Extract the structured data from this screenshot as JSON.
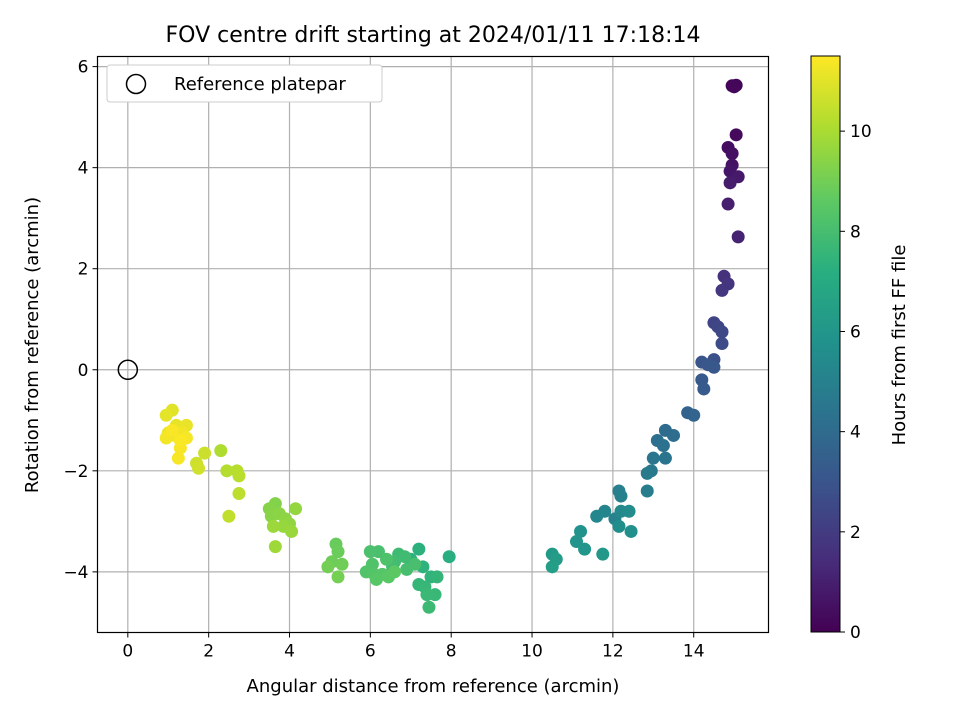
{
  "chart_data": {
    "type": "scatter",
    "title": "FOV centre drift starting at 2024/01/11 17:18:14",
    "xlabel": "Angular distance from reference (arcmin)",
    "ylabel": "Rotation from reference (arcmin)",
    "xlim": [
      -0.75,
      15.85
    ],
    "ylim": [
      -5.2,
      6.2
    ],
    "xticks": [
      0,
      2,
      4,
      6,
      8,
      10,
      12,
      14
    ],
    "yticks": [
      -4,
      -2,
      0,
      2,
      4,
      6
    ],
    "grid": true,
    "legend": {
      "placement": "top-left",
      "entries": [
        "Reference platepar"
      ]
    },
    "colorbar": {
      "label": "Hours from first FF file",
      "range": [
        0,
        11.5
      ],
      "ticks": [
        0,
        2,
        4,
        6,
        8,
        10
      ],
      "colormap": "viridis"
    },
    "reference_point": {
      "x": 0,
      "y": 0
    },
    "series": [
      {
        "points": [
          [
            14.95,
            5.62,
            0.1
          ],
          [
            15.05,
            5.63,
            0.15
          ],
          [
            15.0,
            5.6,
            0.2
          ],
          [
            15.05,
            4.65,
            0.3
          ],
          [
            14.85,
            4.4,
            0.4
          ],
          [
            14.95,
            4.28,
            0.5
          ],
          [
            14.95,
            4.05,
            0.6
          ],
          [
            14.9,
            3.93,
            0.7
          ],
          [
            15.1,
            3.82,
            0.8
          ],
          [
            14.9,
            3.7,
            0.9
          ],
          [
            14.85,
            3.28,
            1.0
          ],
          [
            15.1,
            2.63,
            1.1
          ],
          [
            14.75,
            1.85,
            1.6
          ],
          [
            14.85,
            1.7,
            1.7
          ],
          [
            14.7,
            1.57,
            1.8
          ],
          [
            14.5,
            0.93,
            2.3
          ],
          [
            14.6,
            0.85,
            2.4
          ],
          [
            14.7,
            0.75,
            2.5
          ],
          [
            14.7,
            0.52,
            2.6
          ],
          [
            14.5,
            0.2,
            2.8
          ],
          [
            14.2,
            0.15,
            3.0
          ],
          [
            14.35,
            0.1,
            3.1
          ],
          [
            14.5,
            0.05,
            3.15
          ],
          [
            14.2,
            -0.2,
            3.2
          ],
          [
            14.25,
            -0.38,
            3.3
          ],
          [
            13.85,
            -0.85,
            3.6
          ],
          [
            14.0,
            -0.9,
            3.7
          ],
          [
            13.3,
            -1.2,
            4.0
          ],
          [
            13.5,
            -1.3,
            4.1
          ],
          [
            13.1,
            -1.4,
            4.2
          ],
          [
            13.25,
            -1.5,
            4.3
          ],
          [
            13.3,
            -1.75,
            4.4
          ],
          [
            13.0,
            -1.75,
            4.5
          ],
          [
            12.95,
            -2.0,
            4.6
          ],
          [
            12.85,
            -2.05,
            4.7
          ],
          [
            12.85,
            -2.4,
            4.8
          ],
          [
            12.15,
            -2.4,
            4.9
          ],
          [
            12.2,
            -2.5,
            5.0
          ],
          [
            12.05,
            -2.95,
            5.1
          ],
          [
            11.8,
            -2.8,
            5.2
          ],
          [
            11.6,
            -2.9,
            5.3
          ],
          [
            12.2,
            -2.8,
            5.4
          ],
          [
            12.4,
            -2.8,
            5.5
          ],
          [
            12.15,
            -3.1,
            5.6
          ],
          [
            12.45,
            -3.2,
            5.7
          ],
          [
            11.2,
            -3.2,
            5.8
          ],
          [
            11.1,
            -3.4,
            5.9
          ],
          [
            11.3,
            -3.55,
            6.0
          ],
          [
            11.75,
            -3.65,
            6.1
          ],
          [
            10.5,
            -3.65,
            6.2
          ],
          [
            10.6,
            -3.75,
            6.3
          ],
          [
            10.5,
            -3.9,
            6.4
          ],
          [
            7.95,
            -3.7,
            7.2
          ],
          [
            7.2,
            -3.55,
            7.3
          ],
          [
            7.0,
            -3.75,
            7.35
          ],
          [
            7.3,
            -3.9,
            7.4
          ],
          [
            7.5,
            -4.1,
            7.45
          ],
          [
            7.65,
            -4.1,
            7.5
          ],
          [
            7.2,
            -4.25,
            7.55
          ],
          [
            7.35,
            -4.3,
            7.6
          ],
          [
            7.6,
            -4.45,
            7.65
          ],
          [
            7.4,
            -4.45,
            7.7
          ],
          [
            7.45,
            -4.7,
            7.75
          ],
          [
            6.7,
            -3.65,
            7.8
          ],
          [
            6.85,
            -3.7,
            7.85
          ],
          [
            6.6,
            -3.8,
            7.9
          ],
          [
            6.55,
            -3.9,
            7.95
          ],
          [
            6.9,
            -3.95,
            8.0
          ],
          [
            7.1,
            -3.85,
            8.05
          ],
          [
            6.2,
            -3.6,
            8.1
          ],
          [
            6.0,
            -3.6,
            8.15
          ],
          [
            6.4,
            -3.75,
            8.2
          ],
          [
            6.05,
            -3.85,
            8.25
          ],
          [
            5.9,
            -4.0,
            8.3
          ],
          [
            6.1,
            -4.05,
            8.35
          ],
          [
            6.3,
            -4.05,
            8.4
          ],
          [
            6.15,
            -4.15,
            8.45
          ],
          [
            6.45,
            -4.1,
            8.5
          ],
          [
            6.6,
            -4.0,
            8.55
          ],
          [
            5.15,
            -3.45,
            8.8
          ],
          [
            5.2,
            -3.6,
            8.85
          ],
          [
            5.05,
            -3.8,
            8.9
          ],
          [
            5.3,
            -3.85,
            8.95
          ],
          [
            4.95,
            -3.9,
            9.0
          ],
          [
            5.2,
            -4.1,
            9.05
          ],
          [
            3.65,
            -2.65,
            9.3
          ],
          [
            3.5,
            -2.75,
            9.35
          ],
          [
            3.55,
            -2.9,
            9.4
          ],
          [
            3.75,
            -2.85,
            9.45
          ],
          [
            3.9,
            -2.95,
            9.5
          ],
          [
            4.0,
            -3.05,
            9.55
          ],
          [
            4.15,
            -2.75,
            9.6
          ],
          [
            3.85,
            -3.1,
            9.65
          ],
          [
            4.05,
            -3.2,
            9.7
          ],
          [
            3.6,
            -3.1,
            9.75
          ],
          [
            3.65,
            -3.5,
            9.8
          ],
          [
            2.3,
            -1.6,
            10.1
          ],
          [
            2.45,
            -2.0,
            10.2
          ],
          [
            2.7,
            -2.0,
            10.25
          ],
          [
            2.75,
            -2.1,
            10.3
          ],
          [
            2.75,
            -2.45,
            10.35
          ],
          [
            2.5,
            -2.9,
            10.4
          ],
          [
            1.9,
            -1.65,
            10.6
          ],
          [
            1.7,
            -1.85,
            10.65
          ],
          [
            1.75,
            -1.95,
            10.7
          ],
          [
            1.1,
            -0.8,
            11.0
          ],
          [
            0.95,
            -0.9,
            11.05
          ],
          [
            1.2,
            -1.1,
            11.1
          ],
          [
            1.45,
            -1.1,
            11.15
          ],
          [
            1.0,
            -1.25,
            11.2
          ],
          [
            1.15,
            -1.3,
            11.25
          ],
          [
            1.35,
            -1.25,
            11.3
          ],
          [
            0.95,
            -1.35,
            11.32
          ],
          [
            1.45,
            -1.35,
            11.35
          ],
          [
            1.3,
            -1.55,
            11.38
          ],
          [
            1.25,
            -1.75,
            11.4
          ],
          [
            1.1,
            -1.2,
            11.42
          ],
          [
            1.3,
            -1.4,
            11.45
          ]
        ]
      }
    ]
  }
}
